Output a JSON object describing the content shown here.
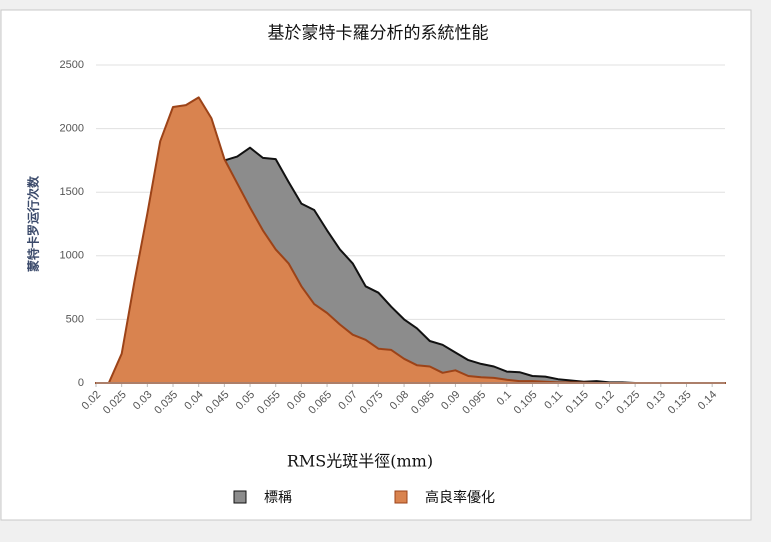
{
  "chart_data": {
    "type": "area",
    "title": "基於蒙特卡羅分析的系統性能",
    "xlabel": "RMS光斑半徑(mm)",
    "ylabel": "蒙特卡罗运行次数",
    "x": [
      0.02,
      0.0225,
      0.025,
      0.0275,
      0.03,
      0.0325,
      0.035,
      0.0375,
      0.04,
      0.0425,
      0.045,
      0.0475,
      0.05,
      0.0525,
      0.055,
      0.0575,
      0.06,
      0.0625,
      0.065,
      0.0675,
      0.07,
      0.0725,
      0.075,
      0.0775,
      0.08,
      0.0825,
      0.085,
      0.0875,
      0.09,
      0.0925,
      0.095,
      0.0975,
      0.1,
      0.1025,
      0.105,
      0.1075,
      0.11,
      0.1125,
      0.115,
      0.1175,
      0.12,
      0.1225,
      0.125,
      0.1275,
      0.13,
      0.1325,
      0.135,
      0.1375,
      0.14,
      0.1425
    ],
    "series": [
      {
        "name": "標稱",
        "color": "#8c8c8c",
        "line_color": "#111111",
        "values": [
          0,
          0,
          0,
          0,
          40,
          200,
          550,
          950,
          1230,
          1530,
          1750,
          1780,
          1850,
          1770,
          1760,
          1580,
          1410,
          1360,
          1200,
          1050,
          940,
          760,
          710,
          600,
          500,
          430,
          330,
          300,
          240,
          180,
          150,
          130,
          90,
          85,
          55,
          50,
          30,
          20,
          10,
          15,
          5,
          5,
          0,
          0,
          0,
          0,
          0,
          0,
          0,
          0
        ]
      },
      {
        "name": "高良率優化",
        "color": "#d9834f",
        "line_color": "#9c4318",
        "values": [
          0,
          0,
          230,
          800,
          1330,
          1900,
          2170,
          2185,
          2245,
          2080,
          1760,
          1570,
          1380,
          1200,
          1050,
          940,
          760,
          620,
          550,
          460,
          380,
          340,
          270,
          260,
          190,
          140,
          130,
          80,
          100,
          55,
          45,
          40,
          25,
          15,
          15,
          10,
          5,
          5,
          3,
          0,
          0,
          0,
          0,
          0,
          0,
          0,
          0,
          0,
          0,
          0
        ]
      }
    ],
    "xlim": [
      0.02,
      0.1425
    ],
    "xticks": [
      0.02,
      0.025,
      0.03,
      0.035,
      0.04,
      0.045,
      0.05,
      0.055,
      0.06,
      0.065,
      0.07,
      0.075,
      0.08,
      0.085,
      0.09,
      0.095,
      0.1,
      0.105,
      0.11,
      0.115,
      0.12,
      0.125,
      0.13,
      0.135,
      0.14
    ],
    "ylim": [
      0,
      2500
    ],
    "yticks": [
      0,
      500,
      1000,
      1500,
      2000,
      2500
    ],
    "grid": true
  }
}
